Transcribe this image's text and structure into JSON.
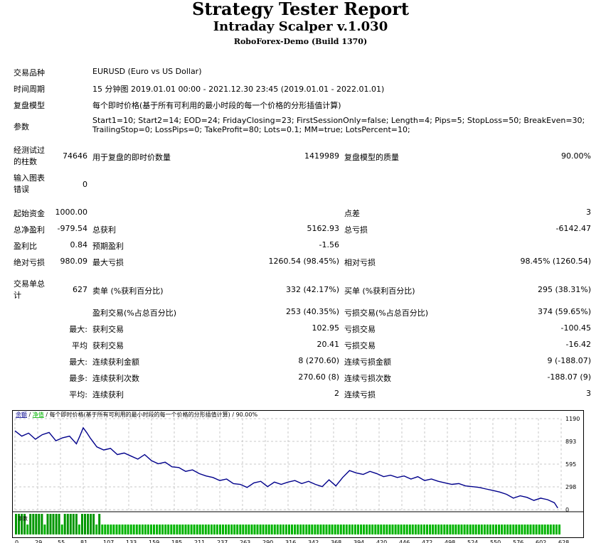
{
  "header": {
    "title": "Strategy Tester Report",
    "ea_name": "Intraday Scalper v.1.030",
    "server": "RoboForex-Demo (Build 1370)"
  },
  "info": {
    "symbol_label": "交易品种",
    "symbol_value": "EURUSD (Euro vs US Dollar)",
    "period_label": "时间周期",
    "period_value": "15 分钟图 2019.01.01 00:00 - 2021.12.30 23:45 (2019.01.01 - 2022.01.01)",
    "model_label": "复盘模型",
    "model_value": "每个即时价格(基于所有可利用的最小时段的每一个价格的分形插值计算)",
    "params_label": "参数",
    "params_line1": "Start1=10; Start2=14; EOD=24; FridayClosing=23; FirstSessionOnly=false; Length=4; Pips=5; StopLoss=50; BreakEven=30;",
    "params_line2": "TrailingStop=0; LossPips=0; TakeProfit=80; Lots=0.1; MM=true; LotsPercent=10;"
  },
  "stats": {
    "bars_label": "经测试过的柱数",
    "bars_value": "74646",
    "ticks_label": "用于复盘的即时价数量",
    "ticks_value": "1419989",
    "quality_label": "复盘模型的质量",
    "quality_value": "90.00%",
    "errors_label": "输入图表错误",
    "errors_value": "0",
    "deposit_label": "起始资金",
    "deposit_value": "1000.00",
    "spread_label": "点差",
    "spread_value": "3",
    "net_label": "总净盈利",
    "net_value": "-979.54",
    "gross_profit_label": "总获利",
    "gross_profit_value": "5162.93",
    "gross_loss_label": "总亏损",
    "gross_loss_value": "-6142.47",
    "pf_label": "盈利比",
    "pf_value": "0.84",
    "payoff_label": "预期盈利",
    "payoff_value": "-1.56",
    "abs_dd_label": "绝对亏损",
    "abs_dd_value": "980.09",
    "max_dd_label": "最大亏损",
    "max_dd_value": "1260.54 (98.45%)",
    "rel_dd_label": "相对亏损",
    "rel_dd_value": "98.45% (1260.54)",
    "trades_label": "交易单总计",
    "trades_value": "627",
    "short_label": "卖单 (%获利百分比)",
    "short_value": "332 (42.17%)",
    "long_label": "买单 (%获利百分比)",
    "long_value": "295 (38.31%)",
    "profit_trades_label": "盈利交易(%占总百分比)",
    "profit_trades_value": "253 (40.35%)",
    "loss_trades_label": "亏损交易(%占总百分比)",
    "loss_trades_value": "374 (59.65%)",
    "largest_label": "最大:",
    "largest_profit_label": "获利交易",
    "largest_profit_value": "102.95",
    "largest_loss_label": "亏损交易",
    "largest_loss_value": "-100.45",
    "average_label": "平均",
    "average_profit_label": "获利交易",
    "average_profit_value": "20.41",
    "average_loss_label": "亏损交易",
    "average_loss_value": "-16.42",
    "max_consec_label": "最大:",
    "max_consec_wins_label": "连续获利金额",
    "max_consec_wins_value": "8 (270.60)",
    "max_consec_losses_label": "连续亏损金额",
    "max_consec_losses_value": "9 (-188.07)",
    "maximal_label": "最多:",
    "maximal_profit_label": "连续获利次数",
    "maximal_profit_value": "270.60 (8)",
    "maximal_loss_label": "连续亏损次数",
    "maximal_loss_value": "-188.07 (9)",
    "avg_consec_label": "平均:",
    "avg_consec_wins_label": "连续获利",
    "avg_consec_wins_value": "2",
    "avg_consec_losses_label": "连续亏损",
    "avg_consec_losses_value": "3"
  },
  "chart_data": {
    "type": "line",
    "legend_balance": "余额",
    "legend_equity": "净值",
    "legend_text": " / 每个即时价格(基于所有可利用的最小时段的每一个价格的分形插值计算) / 90.00%",
    "lots_label": "手数",
    "y_ticks": [
      "1190",
      "893",
      "595",
      "298",
      "0"
    ],
    "x_ticks": [
      "0",
      "29",
      "55",
      "81",
      "107",
      "133",
      "159",
      "185",
      "211",
      "237",
      "263",
      "290",
      "316",
      "342",
      "368",
      "394",
      "420",
      "446",
      "472",
      "498",
      "524",
      "550",
      "576",
      "602",
      "628"
    ],
    "ylim": [
      0,
      1190
    ],
    "xlim": [
      0,
      640
    ],
    "x": [
      0,
      8,
      16,
      24,
      32,
      40,
      48,
      56,
      64,
      72,
      76,
      80,
      84,
      88,
      96,
      104,
      112,
      120,
      128,
      136,
      144,
      152,
      160,
      168,
      176,
      184,
      192,
      200,
      208,
      216,
      224,
      232,
      240,
      248,
      256,
      264,
      272,
      280,
      288,
      296,
      304,
      312,
      320,
      328,
      336,
      344,
      352,
      360,
      368,
      376,
      384,
      392,
      400,
      408,
      416,
      424,
      432,
      440,
      448,
      456,
      464,
      472,
      480,
      488,
      496,
      504,
      512,
      520,
      528,
      536,
      544,
      552,
      560,
      568,
      576,
      584,
      592,
      600,
      608,
      616,
      624,
      632,
      636
    ],
    "y": [
      1030,
      960,
      1000,
      920,
      980,
      1010,
      900,
      940,
      960,
      860,
      960,
      1070,
      1010,
      940,
      820,
      780,
      800,
      720,
      740,
      700,
      660,
      720,
      640,
      600,
      620,
      560,
      550,
      500,
      520,
      470,
      440,
      420,
      380,
      400,
      340,
      330,
      290,
      350,
      370,
      300,
      360,
      330,
      360,
      380,
      340,
      370,
      330,
      300,
      390,
      310,
      420,
      510,
      480,
      460,
      500,
      470,
      430,
      450,
      420,
      440,
      400,
      430,
      380,
      400,
      370,
      350,
      330,
      340,
      310,
      300,
      290,
      270,
      250,
      230,
      200,
      150,
      180,
      160,
      120,
      150,
      130,
      90,
      20
    ],
    "lots": [
      0.1,
      0.1,
      0.1,
      0.1,
      0.1,
      0.1,
      0.1,
      0.1,
      0.1,
      0.1,
      0.1,
      0.1,
      0.1,
      0.1,
      0.1,
      0.1,
      0.1,
      0.1,
      0.1,
      0.1,
      0.1,
      0.1,
      0.1,
      0.1,
      0.1,
      0.1,
      0.1,
      0.1,
      0.1,
      0.1,
      0.1,
      0.1,
      0.1,
      0.1,
      0.1,
      0.1,
      0.1,
      0.1,
      0.1,
      0.1,
      0.1,
      0.1,
      0.1,
      0.1,
      0.1,
      0.1,
      0.1,
      0.1,
      0.1,
      0.1,
      0.1,
      0.1,
      0.1,
      0.1,
      0.1,
      0.1,
      0.1,
      0.1,
      0.1,
      0.1,
      0.1,
      0.1,
      0.1,
      0.1,
      0.1,
      0.1,
      0.1,
      0.1,
      0.1,
      0.1,
      0.1,
      0.1,
      0.1,
      0.1,
      0.1,
      0.1,
      0.1,
      0.1,
      0.1,
      0.1,
      0.1,
      0.1,
      0.1
    ],
    "colors": {
      "balance": "#00008b",
      "grid": "#c8c8c8",
      "lots": "#00b400",
      "lots_tall": "#009600",
      "frame": "#000000",
      "legend_balance": "#00008b",
      "legend_equity": "#00b400"
    }
  }
}
